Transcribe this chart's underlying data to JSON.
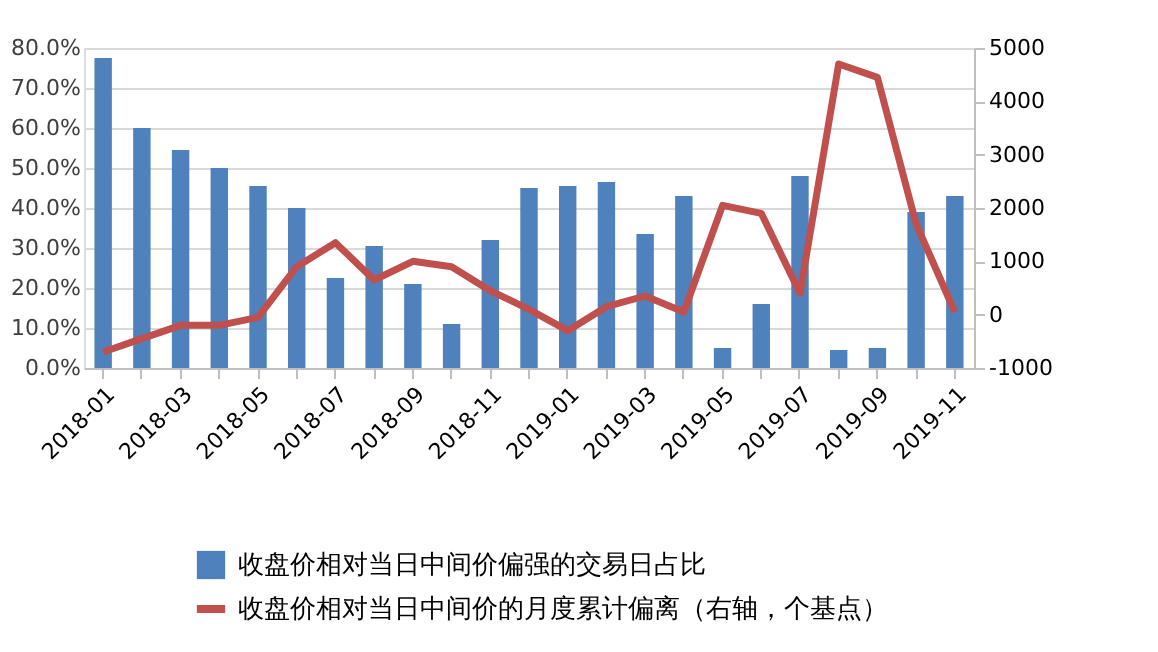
{
  "chart_data": {
    "type": "bar",
    "categories": [
      "2018-01",
      null,
      "2018-03",
      null,
      "2018-05",
      null,
      "2018-07",
      null,
      "2018-09",
      null,
      "2018-11",
      null,
      "2019-01",
      null,
      "2019-03",
      null,
      "2019-05",
      null,
      "2019-07",
      null,
      "2019-09",
      null,
      "2019-11"
    ],
    "series": [
      {
        "name": "收盘价相对当日中间价偏强的交易日占比",
        "color": "#4f81bd",
        "values": [
          77.5,
          60,
          54.5,
          50,
          45.5,
          40,
          22.5,
          30.5,
          21,
          11,
          32,
          45,
          45.5,
          46.5,
          33.5,
          43,
          5,
          16,
          48,
          4.5,
          5,
          39,
          43
        ]
      },
      {
        "name": "收盘价相对当日中间价的月度累计偏离（右轴，个基点）",
        "type": "line",
        "axis": "y2",
        "color": "#c0504d",
        "values": [
          -700,
          -450,
          -200,
          -200,
          -50,
          900,
          1350,
          650,
          1000,
          900,
          450,
          100,
          -300,
          150,
          350,
          50,
          2050,
          1900,
          400,
          4700,
          4450,
          1700,
          50
        ]
      }
    ],
    "ylim": [
      0,
      80
    ],
    "yticks": [
      {
        "value": 0,
        "label": "0.0%"
      },
      {
        "value": 10,
        "label": "10.0%"
      },
      {
        "value": 20,
        "label": "20.0%"
      },
      {
        "value": 30,
        "label": "30.0%"
      },
      {
        "value": 40,
        "label": "40.0%"
      },
      {
        "value": 50,
        "label": "50.0%"
      },
      {
        "value": 60,
        "label": "60.0%"
      },
      {
        "value": 70,
        "label": "70.0%"
      },
      {
        "value": 80,
        "label": "80.0%"
      }
    ],
    "y2lim": [
      -1000,
      5000
    ],
    "y2ticks": [
      -1000,
      0,
      1000,
      2000,
      3000,
      4000,
      5000
    ],
    "grid": "y",
    "legend": "bottom",
    "marker": "none",
    "line_style": "solid"
  }
}
